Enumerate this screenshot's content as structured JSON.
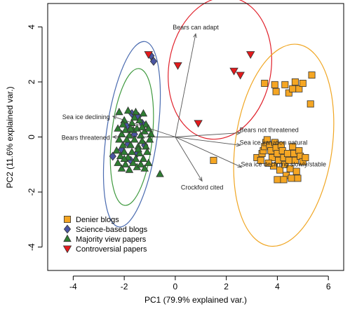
{
  "chart_data": {
    "type": "scatter",
    "title": "",
    "xlabel": "PC1 (79.9% explained var.)",
    "ylabel": "PC2 (11.6% explained var.)",
    "xlim": [
      -5.0,
      6.6
    ],
    "ylim": [
      -4.85,
      4.85
    ],
    "xticks": [
      "-4",
      "-2",
      "0",
      "2",
      "4",
      "6"
    ],
    "xtick_values": [
      -4,
      -2,
      0,
      2,
      4,
      6
    ],
    "yticks": [
      "-4",
      "-2",
      "0",
      "2",
      "4"
    ],
    "ytick_values": [
      -4,
      -2,
      0,
      2,
      4
    ],
    "grid": false,
    "legend_position": "bottom-left",
    "series": [
      {
        "name": "Denier blogs",
        "marker": "square",
        "color": "#f5a623",
        "points": [
          [
            1.5,
            -0.85
          ],
          [
            3.5,
            1.95
          ],
          [
            3.9,
            1.9
          ],
          [
            3.95,
            1.65
          ],
          [
            4.3,
            1.9
          ],
          [
            4.45,
            1.6
          ],
          [
            4.6,
            1.75
          ],
          [
            4.7,
            2.0
          ],
          [
            4.85,
            1.75
          ],
          [
            5.0,
            1.95
          ],
          [
            5.35,
            2.25
          ],
          [
            5.3,
            1.2
          ],
          [
            3.2,
            -0.75
          ],
          [
            3.35,
            -0.85
          ],
          [
            3.4,
            -0.6
          ],
          [
            3.45,
            -0.5
          ],
          [
            3.5,
            -0.35
          ],
          [
            3.55,
            -0.2
          ],
          [
            3.6,
            -0.1
          ],
          [
            3.7,
            -0.3
          ],
          [
            3.75,
            -0.5
          ],
          [
            3.8,
            -0.75
          ],
          [
            3.85,
            -1.05
          ],
          [
            3.9,
            -0.2
          ],
          [
            3.95,
            -0.4
          ],
          [
            4.0,
            -0.6
          ],
          [
            4.05,
            -0.85
          ],
          [
            4.1,
            -1.2
          ],
          [
            4.15,
            -0.3
          ],
          [
            4.2,
            -0.5
          ],
          [
            4.25,
            -0.75
          ],
          [
            4.3,
            -1.0
          ],
          [
            4.35,
            -1.4
          ],
          [
            4.4,
            -0.6
          ],
          [
            4.45,
            -0.85
          ],
          [
            4.5,
            -1.15
          ],
          [
            4.55,
            -1.5
          ],
          [
            4.6,
            -0.35
          ],
          [
            4.65,
            -0.6
          ],
          [
            4.7,
            -0.85
          ],
          [
            4.75,
            -1.25
          ],
          [
            4.8,
            -1.5
          ],
          [
            4.85,
            -0.5
          ],
          [
            4.9,
            -0.7
          ],
          [
            5.0,
            -0.9
          ],
          [
            5.1,
            -0.75
          ],
          [
            4.0,
            -1.55
          ],
          [
            3.65,
            -0.95
          ],
          [
            4.25,
            -1.55
          ]
        ]
      },
      {
        "name": "Science-based blogs",
        "marker": "diamond",
        "color": "#4a55a2",
        "points": [
          [
            -0.95,
            2.95
          ],
          [
            -0.85,
            2.75
          ],
          [
            -2.45,
            -0.7
          ],
          [
            -1.7,
            0.85
          ],
          [
            -1.45,
            0.75
          ],
          [
            -1.9,
            0.4
          ],
          [
            -1.6,
            0.1
          ],
          [
            -1.3,
            0.5
          ],
          [
            -1.85,
            -0.25
          ],
          [
            -1.5,
            -0.6
          ],
          [
            -2.1,
            -0.45
          ],
          [
            -1.2,
            -0.3
          ],
          [
            -1.75,
            -0.85
          ]
        ]
      },
      {
        "name": "Majority view papers",
        "marker": "triangle-up",
        "color": "#2e7d32",
        "points": [
          [
            -2.2,
            0.9
          ],
          [
            -2.0,
            0.6
          ],
          [
            -1.85,
            0.95
          ],
          [
            -1.7,
            0.5
          ],
          [
            -1.55,
            0.9
          ],
          [
            -1.4,
            0.6
          ],
          [
            -1.25,
            0.85
          ],
          [
            -1.15,
            0.45
          ],
          [
            -2.25,
            0.3
          ],
          [
            -2.1,
            0.1
          ],
          [
            -1.95,
            0.25
          ],
          [
            -1.8,
            0.05
          ],
          [
            -1.65,
            0.25
          ],
          [
            -1.5,
            0.3
          ],
          [
            -1.35,
            0.05
          ],
          [
            -1.2,
            0.2
          ],
          [
            -1.05,
            0.3
          ],
          [
            -0.95,
            0.1
          ],
          [
            -2.2,
            -0.1
          ],
          [
            -2.05,
            -0.3
          ],
          [
            -1.9,
            -0.1
          ],
          [
            -1.75,
            -0.3
          ],
          [
            -1.6,
            -0.1
          ],
          [
            -1.45,
            -0.35
          ],
          [
            -1.3,
            -0.15
          ],
          [
            -1.15,
            -0.35
          ],
          [
            -1.0,
            -0.1
          ],
          [
            -2.3,
            -0.5
          ],
          [
            -2.15,
            -0.7
          ],
          [
            -2.0,
            -0.55
          ],
          [
            -1.85,
            -0.75
          ],
          [
            -1.7,
            -0.55
          ],
          [
            -1.55,
            -0.8
          ],
          [
            -1.4,
            -0.6
          ],
          [
            -1.25,
            -0.8
          ],
          [
            -1.1,
            -0.55
          ],
          [
            -2.25,
            -0.95
          ],
          [
            -2.1,
            -1.15
          ],
          [
            -1.95,
            -1.0
          ],
          [
            -1.8,
            -1.2
          ],
          [
            -1.65,
            -0.95
          ],
          [
            -1.5,
            -1.1
          ],
          [
            -1.35,
            -1.0
          ],
          [
            -1.2,
            -1.15
          ],
          [
            -1.05,
            -0.95
          ],
          [
            -2.05,
            0.45
          ],
          [
            -1.6,
            0.7
          ],
          [
            -1.3,
            0.35
          ],
          [
            -0.6,
            -1.35
          ],
          [
            -1.75,
            0.3
          ],
          [
            -2.0,
            -0.8
          ],
          [
            -1.45,
            -0.45
          ]
        ]
      },
      {
        "name": "Controversial papers",
        "marker": "triangle-down",
        "color": "#e31a1c",
        "points": [
          [
            -1.05,
            3.0
          ],
          [
            0.1,
            2.6
          ],
          [
            2.95,
            3.0
          ],
          [
            2.3,
            2.4
          ],
          [
            2.55,
            2.25
          ],
          [
            0.9,
            0.5
          ]
        ]
      }
    ],
    "ellipses": [
      {
        "group": "Science-based blogs",
        "color": "#4a6bb0",
        "cx": -1.7,
        "cy": 0.1,
        "rx": 1.0,
        "ry": 3.4,
        "angle": 8
      },
      {
        "group": "Majority view papers",
        "color": "#3f9a3f",
        "cx": -1.7,
        "cy": 0.0,
        "rx": 0.8,
        "ry": 2.5,
        "angle": 6
      },
      {
        "group": "Controversial papers",
        "color": "#e0212b",
        "cx": 1.75,
        "cy": 2.5,
        "rx": 2.0,
        "ry": 2.6,
        "angle": 10
      },
      {
        "group": "Denier blogs",
        "color": "#f0a623",
        "cx": 4.25,
        "cy": -0.3,
        "rx": 1.9,
        "ry": 3.7,
        "angle": 8
      }
    ],
    "loadings": [
      {
        "label": "Bears can adapt",
        "x": 0.8,
        "y": 3.75
      },
      {
        "label": "Sea ice declining",
        "x": -2.45,
        "y": 0.75
      },
      {
        "label": "Bears threatened",
        "x": -2.45,
        "y": 0.0
      },
      {
        "label": "Bears not threatened",
        "x": 2.55,
        "y": 0.15
      },
      {
        "label": "Sea ice variation natural",
        "x": 2.55,
        "y": -0.3
      },
      {
        "label": "Sea ice declining slowly/stable",
        "x": 2.6,
        "y": -1.1
      },
      {
        "label": "Crockford cited",
        "x": 1.05,
        "y": -1.6
      }
    ]
  }
}
